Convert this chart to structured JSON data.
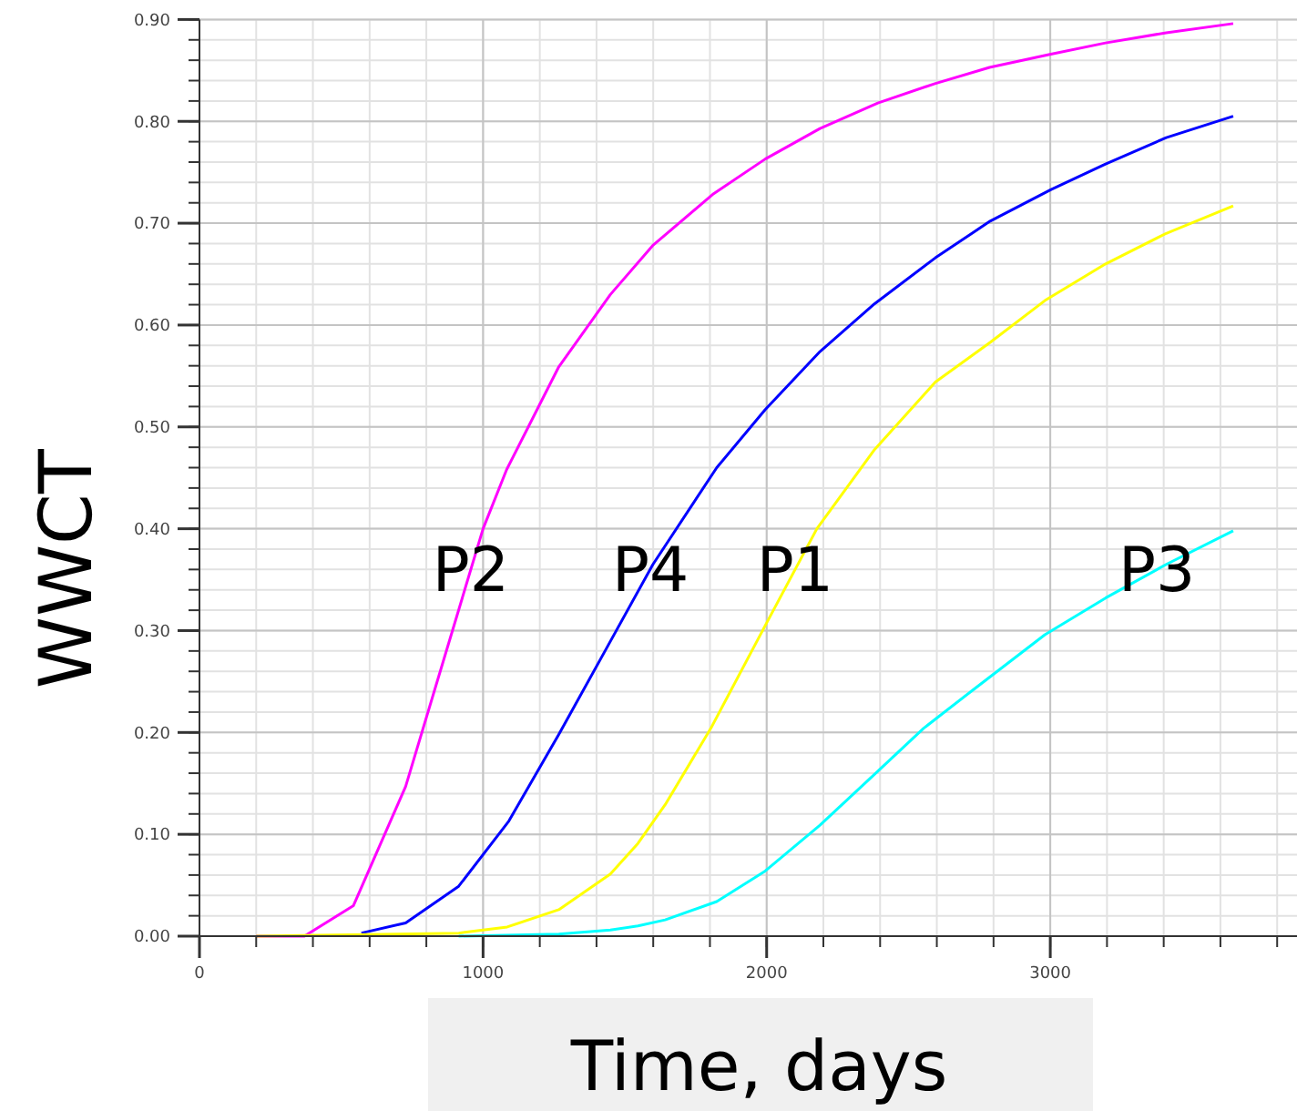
{
  "chart_data": {
    "type": "line",
    "xlabel": "Time, days",
    "ylabel": "WWCT",
    "xlim": [
      0,
      3870
    ],
    "xticks": [
      0,
      1000,
      2000,
      3000
    ],
    "ylim": [
      0,
      0.9
    ],
    "yticks": [
      {
        "value": 0,
        "label": "0.00"
      },
      {
        "value": 0.1,
        "label": "0.10"
      },
      {
        "value": 0.2,
        "label": "0.20"
      },
      {
        "value": 0.3,
        "label": "0.30"
      },
      {
        "value": 0.4,
        "label": "0.40"
      },
      {
        "value": 0.5,
        "label": "0.50"
      },
      {
        "value": 0.6,
        "label": "0.60"
      },
      {
        "value": 0.7,
        "label": "0.70"
      },
      {
        "value": 0.8,
        "label": "0.80"
      },
      {
        "value": 0.9,
        "label": "0.90"
      }
    ],
    "grid": true,
    "line_style": "solid",
    "series": [
      {
        "color": "#ff00ff",
        "x": [
          200,
          370,
          543,
          727,
          1000,
          1083,
          1267,
          1449,
          1598,
          1813,
          1995,
          2188,
          2392,
          2593,
          2786,
          3002,
          3195,
          3409,
          3645
        ],
        "values": [
          0,
          0,
          0.03,
          0.147,
          0.4,
          0.458,
          0.559,
          0.63,
          0.678,
          0.729,
          0.763,
          0.793,
          0.818,
          0.837,
          0.853,
          0.866,
          0.877,
          0.887,
          0.896
        ]
      },
      {
        "color": "#0000ff",
        "x": [
          571,
          727,
          914,
          1091,
          1267,
          1438,
          1599,
          1824,
          1995,
          2188,
          2381,
          2595,
          2788,
          3003,
          3195,
          3409,
          3645
        ],
        "values": [
          0.003,
          0.013,
          0.049,
          0.113,
          0.198,
          0.284,
          0.365,
          0.46,
          0.517,
          0.574,
          0.621,
          0.666,
          0.702,
          0.733,
          0.758,
          0.784,
          0.805
        ]
      },
      {
        "color": "#ffff00",
        "x": [
          200,
          914,
          1085,
          1267,
          1449,
          1546,
          1642,
          1803,
          1995,
          2177,
          2381,
          2595,
          2788,
          2981,
          3195,
          3409,
          3645
        ],
        "values": [
          0,
          0.003,
          0.009,
          0.026,
          0.061,
          0.091,
          0.129,
          0.204,
          0.305,
          0.4,
          0.478,
          0.544,
          0.583,
          0.624,
          0.66,
          0.69,
          0.717
        ]
      },
      {
        "color": "#00ffff",
        "x": [
          914,
          1267,
          1449,
          1546,
          1642,
          1824,
          1995,
          2188,
          2392,
          2553,
          2724,
          2981,
          3195,
          3409,
          3645
        ],
        "values": [
          0,
          0.002,
          0.006,
          0.01,
          0.016,
          0.034,
          0.064,
          0.109,
          0.162,
          0.204,
          0.241,
          0.296,
          0.332,
          0.365,
          0.398
        ]
      }
    ],
    "annotations": [
      {
        "text": "P2",
        "x": 957,
        "y": 0.36
      },
      {
        "text": "P4",
        "x": 1590,
        "y": 0.36
      },
      {
        "text": "P1",
        "x": 2100,
        "y": 0.36
      },
      {
        "text": "P3",
        "x": 3376,
        "y": 0.36
      }
    ]
  }
}
